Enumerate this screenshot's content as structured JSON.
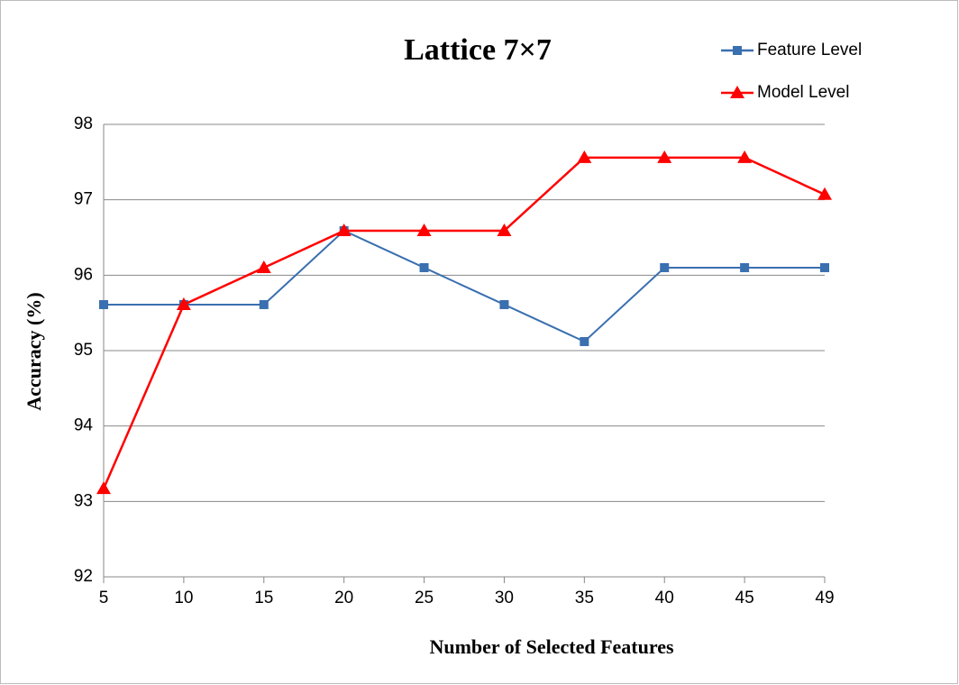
{
  "chart_data": {
    "type": "line",
    "title": "Lattice 7×7",
    "x_label": "Number of  Selected Features",
    "y_label": "Accuracy (%)",
    "categories": [
      "5",
      "10",
      "15",
      "20",
      "25",
      "30",
      "35",
      "40",
      "45",
      "49"
    ],
    "series": [
      {
        "name": "Feature Level",
        "color": "#3a6fb0",
        "marker": "square",
        "values": [
          95.61,
          95.61,
          95.61,
          96.59,
          96.1,
          95.61,
          95.12,
          96.1,
          96.1,
          96.1
        ]
      },
      {
        "name": "Model Level",
        "color": "#ff0000",
        "marker": "triangle",
        "values": [
          93.17,
          95.61,
          96.1,
          96.59,
          96.59,
          96.59,
          97.56,
          97.56,
          97.56,
          97.07
        ]
      }
    ],
    "ylim": [
      92,
      98
    ],
    "yticks": [
      92,
      93,
      94,
      95,
      96,
      97,
      98
    ],
    "grid": true,
    "legend": "top-right"
  }
}
